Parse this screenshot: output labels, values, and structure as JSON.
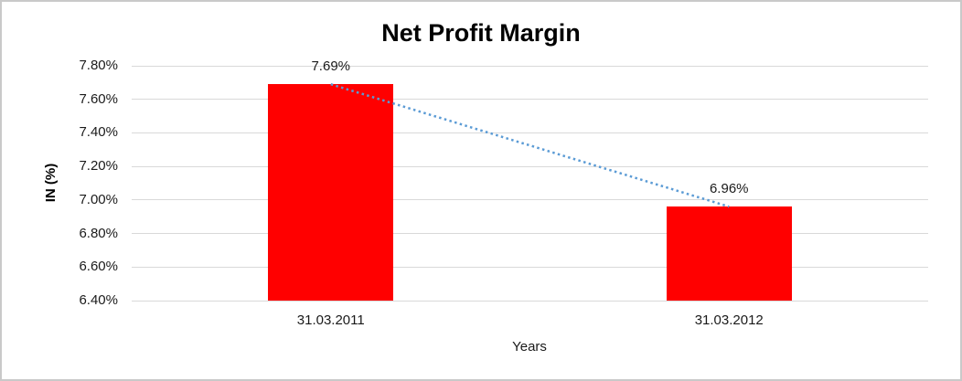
{
  "chart_data": {
    "type": "bar",
    "title": "Net Profit Margin",
    "xlabel": "Years",
    "ylabel": "IN (%)",
    "categories": [
      "31.03.2011",
      "31.03.2012"
    ],
    "values": [
      7.69,
      6.96
    ],
    "value_labels": [
      "7.69%",
      "6.96%"
    ],
    "y_ticks": [
      {
        "value": 7.8,
        "label": "7.80%"
      },
      {
        "value": 7.6,
        "label": "7.60%"
      },
      {
        "value": 7.4,
        "label": "7.40%"
      },
      {
        "value": 7.2,
        "label": "7.20%"
      },
      {
        "value": 7.0,
        "label": "7.00%"
      },
      {
        "value": 6.8,
        "label": "6.80%"
      },
      {
        "value": 6.6,
        "label": "6.60%"
      },
      {
        "value": 6.4,
        "label": "6.40%"
      }
    ],
    "ylim": [
      6.4,
      7.8
    ],
    "grid": true,
    "legend": false,
    "trendline": {
      "style": "dotted",
      "from_value": 7.69,
      "to_value": 6.96
    },
    "colors": {
      "bar": "#ff0000",
      "trendline": "#5b9bd5",
      "gridline": "#d9d9d9",
      "text": "#1a1a1a",
      "title_text": "#000000",
      "border": "#c9c9c9"
    }
  }
}
